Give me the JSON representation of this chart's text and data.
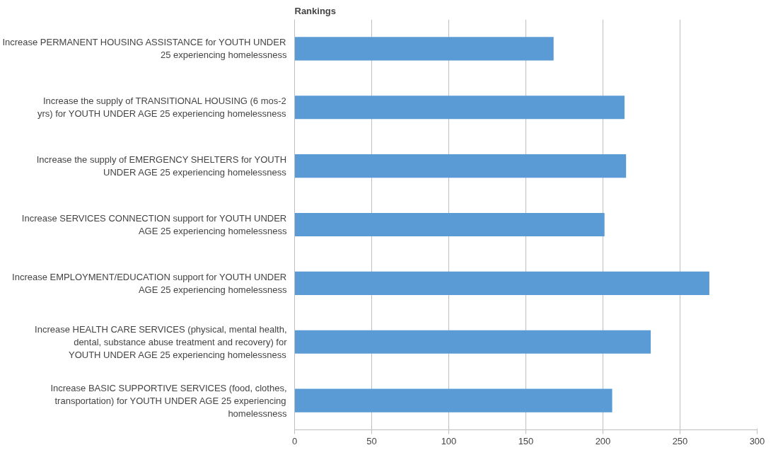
{
  "chart_data": {
    "type": "bar",
    "orientation": "horizontal",
    "title": "Rankings",
    "categories": [
      "Increase PERMANENT HOUSING ASSISTANCE for YOUTH UNDER 25 experiencing homelessness",
      "Increase the supply of TRANSITIONAL HOUSING (6 mos-2 yrs) for YOUTH UNDER AGE 25 experiencing homelessness",
      "Increase the supply of EMERGENCY SHELTERS for YOUTH UNDER AGE 25 experiencing homelessness",
      "Increase SERVICES CONNECTION support for YOUTH UNDER AGE 25 experiencing homelessness",
      "Increase EMPLOYMENT/EDUCATION support for YOUTH UNDER AGE 25 experiencing homelessness",
      "Increase HEALTH CARE SERVICES (physical, mental health, dental, substance abuse treatment and recovery) for YOUTH UNDER AGE 25 experiencing homelessness",
      "Increase BASIC SUPPORTIVE SERVICES (food, clothes, transportation) for YOUTH UNDER AGE 25 experiencing homelessness"
    ],
    "values": [
      168,
      214,
      215,
      201,
      269,
      231,
      206
    ],
    "color": "#5b9bd5",
    "xlim": [
      0,
      300
    ],
    "xticks": [
      0,
      50,
      100,
      150,
      200,
      250,
      300
    ],
    "grid": "x"
  }
}
